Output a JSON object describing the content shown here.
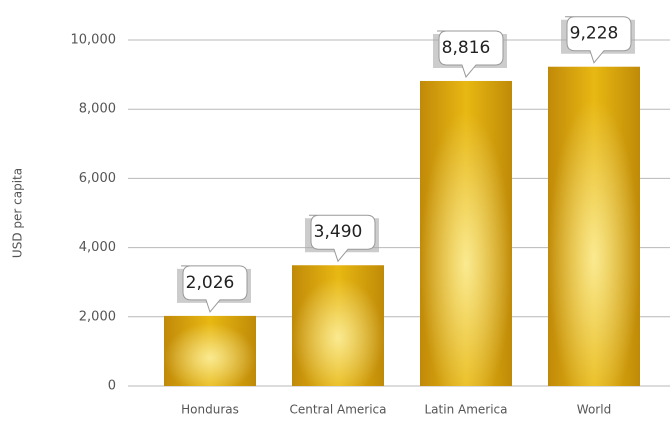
{
  "chart_data": {
    "type": "bar",
    "y_label": "USD per capita",
    "categories": [
      "Honduras",
      "Central America",
      "Latin America",
      "World"
    ],
    "values": [
      2026,
      3490,
      8816,
      9228
    ],
    "value_labels": [
      "2,026",
      "3,490",
      "8,816",
      "9,228"
    ],
    "color": "#e8b812",
    "ylim": [
      0,
      10000
    ],
    "yticks": [
      0,
      {
        "value": 2000,
        "label": "2,000"
      },
      {
        "value": 4000,
        "label": "4,000"
      },
      {
        "value": 6000,
        "label": "6,000"
      },
      {
        "value": 8000,
        "label": "8,000"
      },
      {
        "value": 10000,
        "label": "10,000"
      }
    ],
    "grid": true
  }
}
